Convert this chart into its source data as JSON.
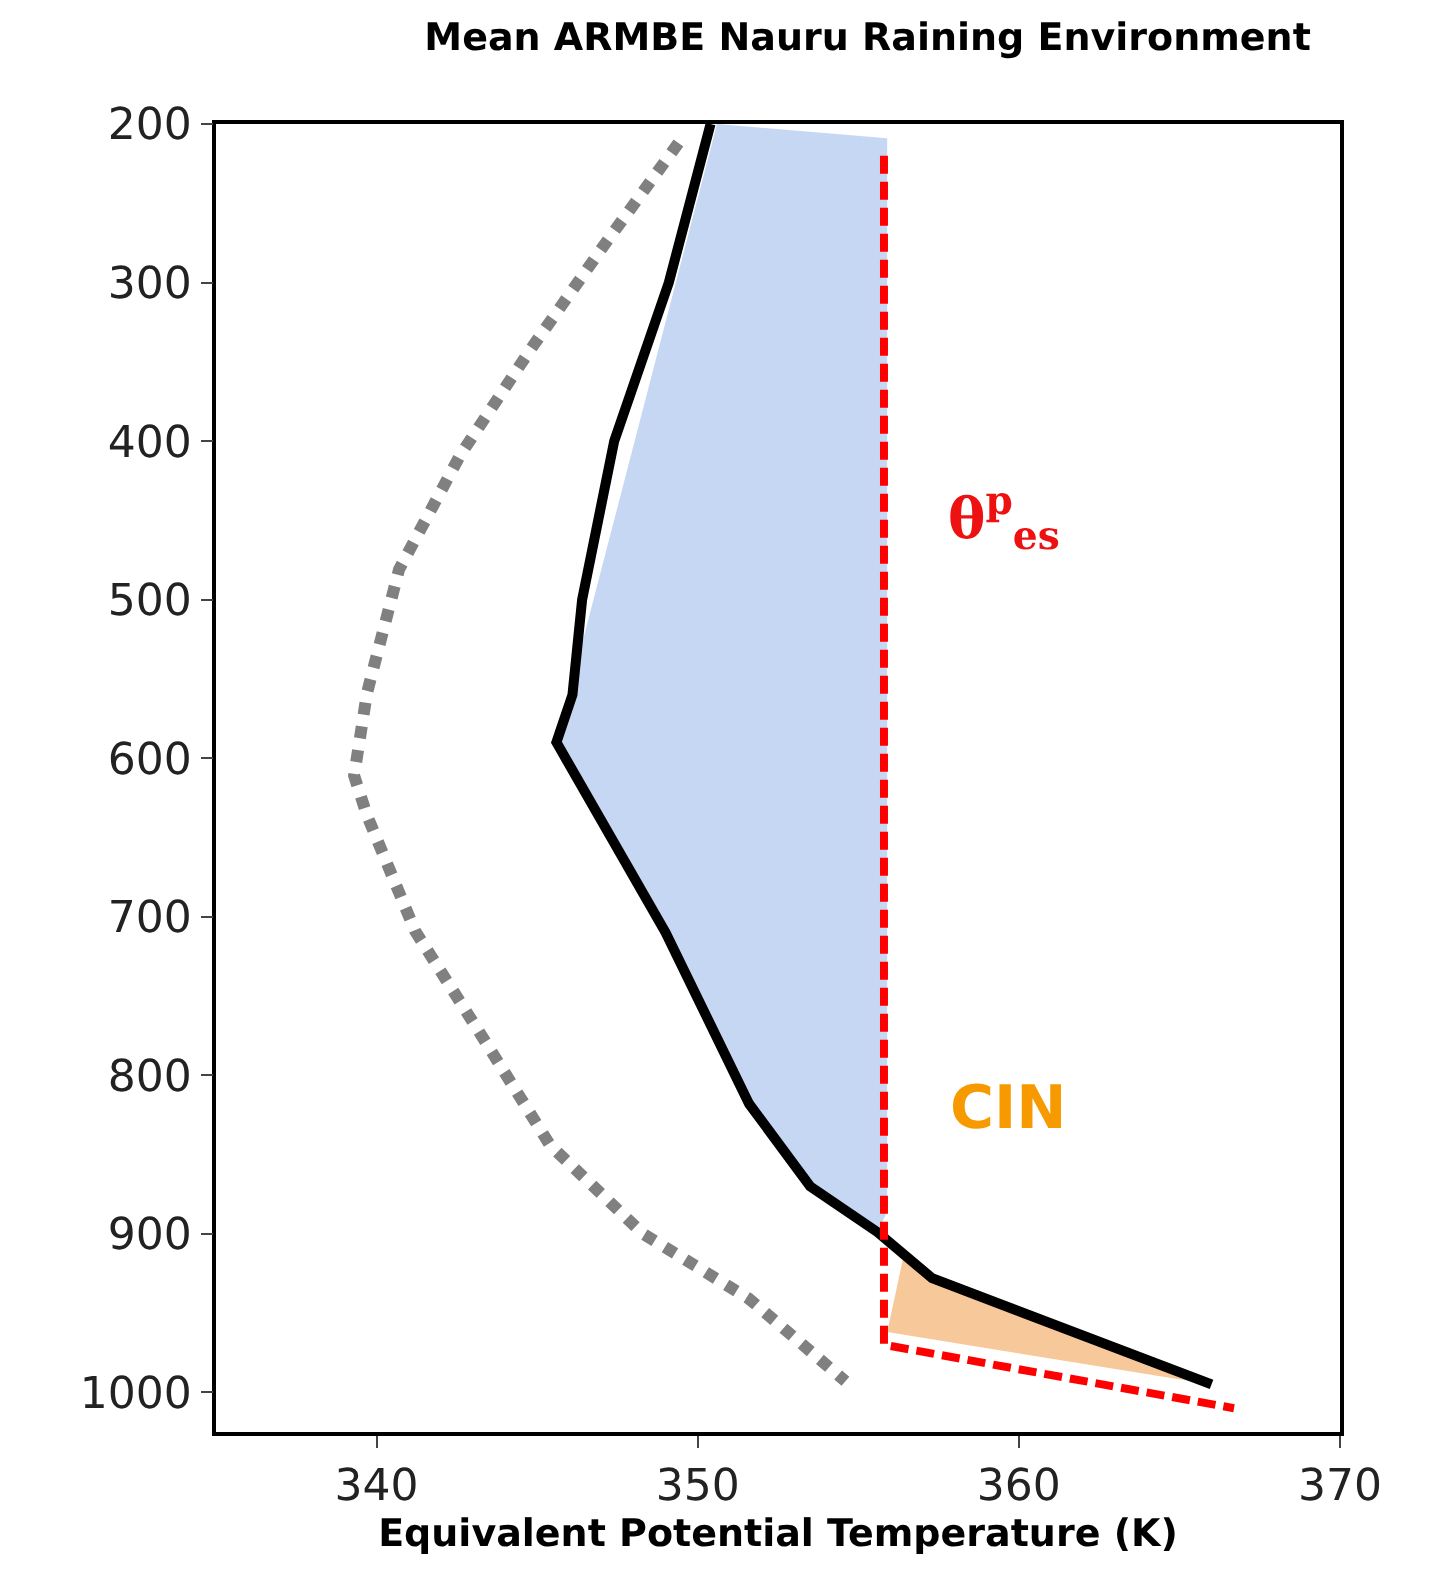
{
  "chart_data": {
    "type": "line",
    "title": "Mean ARMBE Nauru Raining Environment",
    "xlabel": "Equivalent Potential Temperature (K)",
    "xlim": [
      335,
      370
    ],
    "xticks": [
      340,
      350,
      360,
      370
    ],
    "ylim": [
      1025,
      200
    ],
    "yticks": [
      200,
      300,
      400,
      500,
      600,
      700,
      800,
      900,
      1000
    ],
    "marker": "none",
    "series": [
      {
        "type": "area",
        "color": "#c6d7f4",
        "x": [
          350.6,
          355.9,
          355.9,
          355.6,
          353.5,
          351.6,
          349.0,
          345.6
        ],
        "values": [
          200,
          209,
          886,
          899,
          870,
          818,
          710,
          590
        ]
      },
      {
        "type": "area",
        "color": "#f7c99a",
        "x": [
          356.4,
          357.3,
          366.0,
          355.9
        ],
        "values": [
          915,
          928,
          995,
          962
        ]
      },
      {
        "color": "#808080",
        "line_style": "dotted",
        "x": [
          349.4,
          347.1,
          344.8,
          342.6,
          340.7,
          339.7,
          339.3,
          339.7,
          341.2,
          343.3,
          345.4,
          348.3,
          351.6,
          354.6
        ],
        "values": [
          212,
          276,
          342,
          409,
          481,
          559,
          611,
          636,
          709,
          776,
          844,
          900,
          941,
          993
        ]
      },
      {
        "color": "#000000",
        "line_style": "solid",
        "x": [
          350.4,
          349.1,
          347.4,
          346.4,
          346.1,
          345.6,
          349.0,
          351.6,
          353.5,
          355.6,
          357.3,
          366.0
        ],
        "values": [
          200,
          300,
          400,
          500,
          560,
          590,
          710,
          818,
          870,
          899,
          928,
          995
        ]
      },
      {
        "color": "#ff0000",
        "line_style": "dashed",
        "x": [
          355.8,
          355.8,
          366.7
        ],
        "values": [
          220,
          970,
          1010
        ]
      }
    ],
    "annotations": [
      "θ$^{p}$$_{es}$",
      "CIN"
    ]
  }
}
